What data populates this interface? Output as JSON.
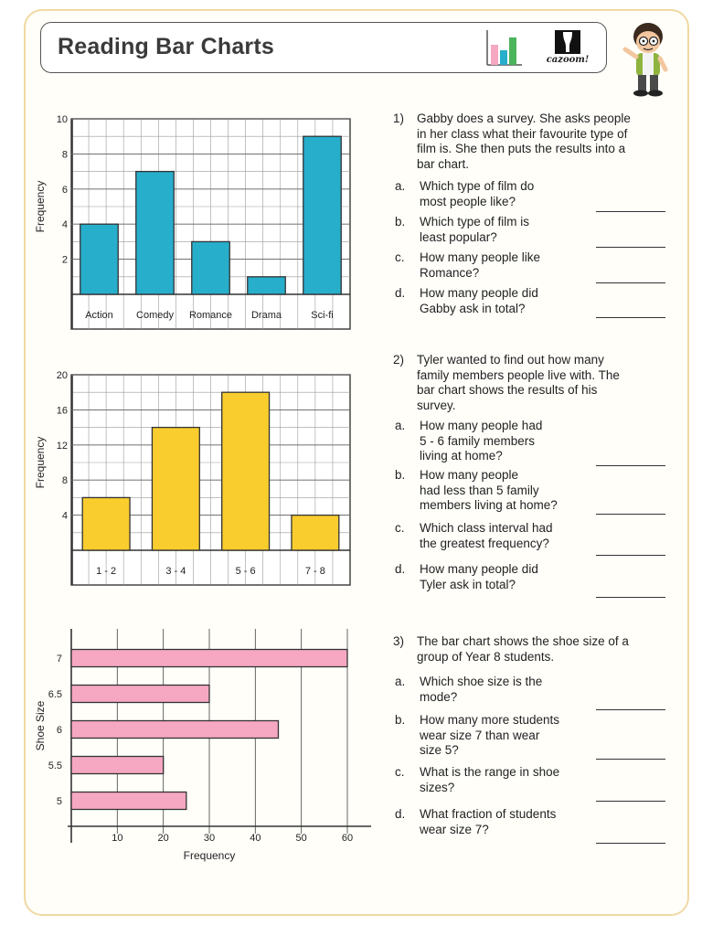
{
  "header": {
    "title": "Reading Bar Charts",
    "brand": "cazoom!"
  },
  "charts": [
    {
      "chart_data": {
        "type": "bar",
        "orientation": "vertical",
        "categories": [
          "Action",
          "Comedy",
          "Romance",
          "Drama",
          "Sci-fi"
        ],
        "values": [
          4,
          7,
          3,
          1,
          9
        ],
        "ylabel": "Frequency",
        "yticks": [
          "2",
          "4",
          "6",
          "8",
          "10"
        ],
        "ylim": [
          0,
          10
        ],
        "color": "#27aecb",
        "grid": true
      }
    },
    {
      "chart_data": {
        "type": "bar",
        "orientation": "vertical",
        "categories": [
          "1 - 2",
          "3 - 4",
          "5 - 6",
          "7 - 8"
        ],
        "values": [
          6,
          14,
          18,
          4
        ],
        "ylabel": "Frequency",
        "yticks": [
          "4",
          "8",
          "12",
          "16",
          "20"
        ],
        "ylim": [
          0,
          20
        ],
        "color": "#f9cd2e",
        "grid": true
      }
    },
    {
      "chart_data": {
        "type": "bar",
        "orientation": "horizontal",
        "categories": [
          "5",
          "5.5",
          "6",
          "6.5",
          "7"
        ],
        "values": [
          25,
          20,
          45,
          30,
          60
        ],
        "xlabel": "Frequency",
        "ylabel": "Shoe Size",
        "xticks": [
          "10",
          "20",
          "30",
          "40",
          "50",
          "60"
        ],
        "xlim": [
          0,
          60
        ],
        "color": "#f6a7c2",
        "grid": true
      }
    }
  ],
  "questions": [
    {
      "num": "1)",
      "lines": [
        "Gabby does a survey. She asks people",
        "in her class what their favourite type of",
        "film is. She then puts the results into a",
        "bar chart."
      ],
      "parts": [
        {
          "letter": "a.",
          "lines": [
            "Which type of film do",
            "most people like?"
          ]
        },
        {
          "letter": "b.",
          "lines": [
            "Which type of film is",
            "least popular?"
          ]
        },
        {
          "letter": "c.",
          "lines": [
            "How many people like",
            "Romance?"
          ]
        },
        {
          "letter": "d.",
          "lines": [
            "How many people did",
            "Gabby ask in total?"
          ]
        }
      ]
    },
    {
      "num": "2)",
      "lines": [
        "Tyler wanted to find out how many",
        "family members people live with. The",
        "bar chart shows the results of his",
        "survey."
      ],
      "parts": [
        {
          "letter": "a.",
          "lines": [
            "How many people had",
            "5 - 6 family members",
            "living at home?"
          ]
        },
        {
          "letter": "b.",
          "lines": [
            "How many people",
            "had less than 5 family",
            "members living at home?"
          ]
        },
        {
          "letter": "c.",
          "lines": [
            "Which class interval had",
            "the greatest frequency?"
          ]
        },
        {
          "letter": "d.",
          "lines": [
            "How many people did",
            "Tyler ask in total?"
          ]
        }
      ]
    },
    {
      "num": "3)",
      "lines": [
        "The bar chart shows the shoe size of a",
        "group of Year 8 students."
      ],
      "parts": [
        {
          "letter": "a.",
          "lines": [
            "Which shoe size is the",
            "mode?"
          ]
        },
        {
          "letter": "b.",
          "lines": [
            "How many more students",
            "wear size 7 than wear",
            "size 5?"
          ]
        },
        {
          "letter": "c.",
          "lines": [
            "What is the range in shoe",
            "sizes?"
          ]
        },
        {
          "letter": "d.",
          "lines": [
            "What fraction of students",
            "wear size 7?"
          ]
        }
      ]
    }
  ]
}
